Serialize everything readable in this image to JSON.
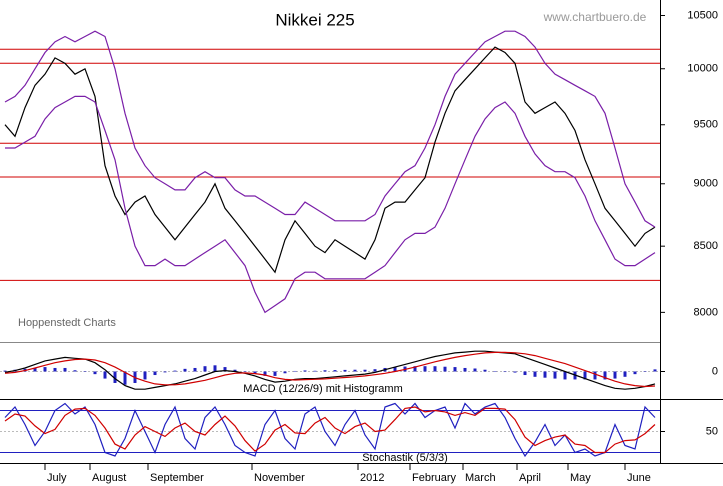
{
  "chart_data": [
    {
      "type": "line",
      "title": "Nikkei 225",
      "source": "www.chartbuero.de",
      "credit": "Hoppenstedt Charts",
      "log_scale": true,
      "xlim": [
        0,
        66
      ],
      "ylim": [
        7800,
        10650
      ],
      "yticks": [
        8000,
        8500,
        9000,
        9500,
        10000,
        10500
      ],
      "xticks": [
        {
          "value": 4.5,
          "label": "July"
        },
        {
          "value": 9,
          "label": "August"
        },
        {
          "value": 14.8,
          "label": "September"
        },
        {
          "value": 25.2,
          "label": "November"
        },
        {
          "value": 35.8,
          "label": "2012"
        },
        {
          "value": 41,
          "label": "February"
        },
        {
          "value": 46.3,
          "label": "March"
        },
        {
          "value": 51.7,
          "label": "April"
        },
        {
          "value": 56.8,
          "label": "May"
        },
        {
          "value": 62.5,
          "label": "June"
        }
      ],
      "hlines": [
        10180,
        10050,
        9340,
        9056,
        8238
      ],
      "hline_color": "#d00000",
      "series": [
        {
          "color": "#000000",
          "values": [
            9500,
            9400,
            9650,
            9850,
            9950,
            10100,
            10050,
            9950,
            10000,
            9750,
            9150,
            8900,
            8750,
            8850,
            8900,
            8750,
            8650,
            8550,
            8650,
            8750,
            8850,
            9000,
            8800,
            8700,
            8600,
            8500,
            8400,
            8300,
            8550,
            8700,
            8600,
            8500,
            8450,
            8550,
            8500,
            8450,
            8400,
            8550,
            8800,
            8850,
            8850,
            8950,
            9050,
            9350,
            9600,
            9800,
            9900,
            10000,
            10100,
            10200,
            10150,
            10050,
            9700,
            9600,
            9650,
            9700,
            9600,
            9450,
            9200,
            9000,
            8800,
            8700,
            8600,
            8500,
            8600,
            8650
          ]
        },
        {
          "color": "#7a1fa8",
          "values": [
            9700,
            9750,
            9850,
            10000,
            10150,
            10250,
            10300,
            10250,
            10300,
            10350,
            10300,
            10000,
            9600,
            9300,
            9150,
            9050,
            9000,
            8950,
            8950,
            9050,
            9100,
            9050,
            9050,
            8950,
            8900,
            8900,
            8850,
            8800,
            8750,
            8750,
            8850,
            8800,
            8750,
            8700,
            8700,
            8700,
            8700,
            8750,
            8900,
            9000,
            9100,
            9150,
            9300,
            9500,
            9750,
            9950,
            10050,
            10150,
            10250,
            10300,
            10350,
            10350,
            10300,
            10200,
            10050,
            9950,
            9900,
            9850,
            9800,
            9750,
            9600,
            9300,
            9000,
            8850,
            8700,
            8650
          ]
        },
        {
          "color": "#7a1fa8",
          "values": [
            9300,
            9300,
            9350,
            9400,
            9550,
            9650,
            9700,
            9750,
            9750,
            9700,
            9450,
            9200,
            8800,
            8500,
            8350,
            8350,
            8400,
            8350,
            8350,
            8400,
            8450,
            8500,
            8550,
            8450,
            8350,
            8150,
            8000,
            8050,
            8100,
            8250,
            8300,
            8300,
            8250,
            8250,
            8250,
            8250,
            8250,
            8300,
            8350,
            8450,
            8550,
            8600,
            8600,
            8650,
            8800,
            9000,
            9200,
            9400,
            9550,
            9650,
            9700,
            9600,
            9400,
            9250,
            9150,
            9100,
            9100,
            9050,
            8900,
            8700,
            8550,
            8400,
            8350,
            8350,
            8400,
            8450
          ]
        }
      ]
    },
    {
      "type": "line",
      "title": "MACD (12/26/9) mit Histogramm",
      "xlim": [
        0,
        66
      ],
      "ylim": [
        -150,
        150
      ],
      "yticks": [
        0
      ],
      "series": [
        {
          "type": "bar",
          "color": "#2020c0",
          "values": [
            5,
            10,
            15,
            20,
            25,
            20,
            20,
            7,
            0,
            -15,
            -40,
            -65,
            -75,
            -65,
            -45,
            -20,
            -5,
            5,
            15,
            20,
            30,
            35,
            25,
            10,
            -2,
            -13,
            -25,
            -25,
            -10,
            3,
            6,
            4,
            7,
            8,
            9,
            10,
            10,
            13,
            20,
            25,
            28,
            30,
            30,
            30,
            27,
            25,
            20,
            17,
            10,
            2,
            -3,
            -6,
            -20,
            -30,
            -35,
            -40,
            -45,
            -45,
            -45,
            -45,
            -45,
            -40,
            -30,
            -15,
            0,
            12
          ]
        },
        {
          "color": "#000000",
          "values": [
            -5,
            5,
            20,
            40,
            60,
            70,
            80,
            75,
            70,
            50,
            10,
            -40,
            -80,
            -100,
            -100,
            -90,
            -80,
            -70,
            -55,
            -40,
            -20,
            0,
            5,
            0,
            -10,
            -25,
            -45,
            -60,
            -55,
            -45,
            -40,
            -40,
            -35,
            -30,
            -25,
            -20,
            -15,
            -5,
            10,
            25,
            40,
            55,
            70,
            85,
            95,
            105,
            110,
            115,
            115,
            110,
            105,
            100,
            80,
            60,
            40,
            20,
            0,
            -20,
            -40,
            -60,
            -80,
            -95,
            -100,
            -95,
            -85,
            -70
          ]
        },
        {
          "color": "#d00000",
          "values": [
            -10,
            -5,
            5,
            20,
            35,
            50,
            60,
            68,
            70,
            65,
            50,
            25,
            -5,
            -35,
            -55,
            -70,
            -75,
            -75,
            -70,
            -60,
            -50,
            -35,
            -20,
            -10,
            -8,
            -12,
            -20,
            -35,
            -45,
            -48,
            -46,
            -44,
            -42,
            -38,
            -34,
            -30,
            -25,
            -18,
            -10,
            0,
            12,
            25,
            40,
            55,
            68,
            80,
            90,
            98,
            105,
            108,
            108,
            106,
            100,
            90,
            75,
            60,
            45,
            25,
            5,
            -15,
            -35,
            -55,
            -70,
            -80,
            -85,
            -82
          ]
        }
      ]
    },
    {
      "type": "line",
      "title": "Stochastik (5/3/3)",
      "xlim": [
        0,
        66
      ],
      "ylim": [
        5,
        95
      ],
      "yticks": [
        50
      ],
      "hlines": [
        80,
        20
      ],
      "hline_color": "#2020c0",
      "series": [
        {
          "color": "#2020c0",
          "values": [
            70,
            85,
            60,
            30,
            50,
            80,
            90,
            75,
            85,
            60,
            20,
            15,
            40,
            80,
            50,
            20,
            60,
            85,
            40,
            25,
            70,
            85,
            60,
            30,
            20,
            15,
            60,
            80,
            40,
            25,
            75,
            85,
            50,
            30,
            60,
            80,
            45,
            25,
            85,
            90,
            75,
            90,
            70,
            80,
            85,
            55,
            90,
            75,
            85,
            90,
            70,
            40,
            15,
            35,
            60,
            30,
            45,
            20,
            25,
            15,
            20,
            60,
            30,
            25,
            85,
            70
          ]
        },
        {
          "color": "#d00000",
          "values": [
            65,
            75,
            72,
            58,
            47,
            53,
            73,
            82,
            83,
            73,
            55,
            32,
            25,
            45,
            57,
            50,
            43,
            55,
            62,
            50,
            45,
            60,
            72,
            58,
            37,
            22,
            32,
            52,
            60,
            48,
            47,
            62,
            70,
            55,
            47,
            57,
            62,
            50,
            52,
            67,
            83,
            85,
            78,
            80,
            78,
            73,
            77,
            73,
            83,
            83,
            82,
            67,
            42,
            30,
            37,
            42,
            45,
            32,
            30,
            20,
            20,
            32,
            37,
            38,
            47,
            60
          ]
        }
      ]
    }
  ]
}
